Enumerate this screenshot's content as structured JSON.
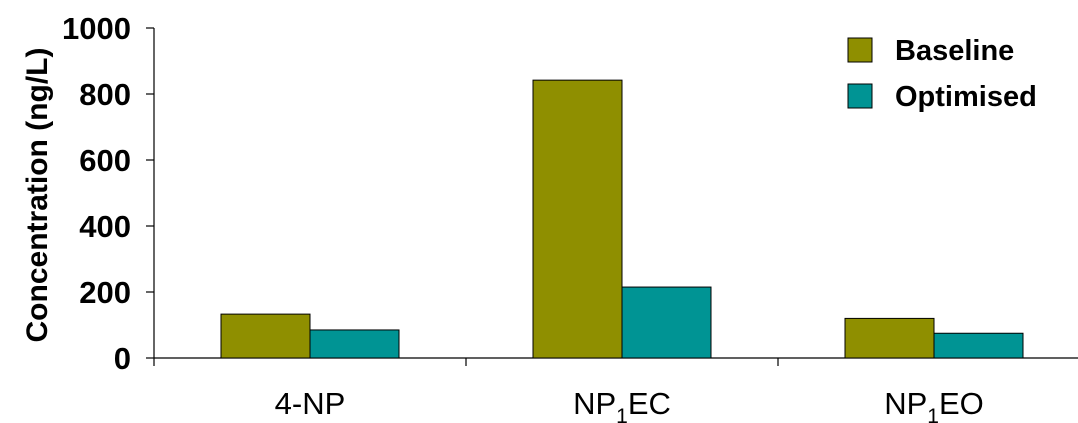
{
  "chart_data": {
    "type": "bar",
    "categories": [
      {
        "main": "4-NP",
        "sub": "",
        "rest": ""
      },
      {
        "main": "NP",
        "sub": "1",
        "rest": "EC"
      },
      {
        "main": "NP",
        "sub": "1",
        "rest": "EO"
      }
    ],
    "series": [
      {
        "name": "Baseline",
        "color": "#8f8f00",
        "values": [
          133,
          842,
          120
        ]
      },
      {
        "name": "Optimised",
        "color": "#009494",
        "values": [
          85,
          215,
          75
        ]
      }
    ],
    "xlabel": "",
    "ylabel": "Concentration (ng/L)",
    "ylim": [
      0,
      1000
    ],
    "yticks": [
      0,
      200,
      400,
      600,
      800,
      1000
    ],
    "grid": false,
    "legend_position": "top-right"
  }
}
